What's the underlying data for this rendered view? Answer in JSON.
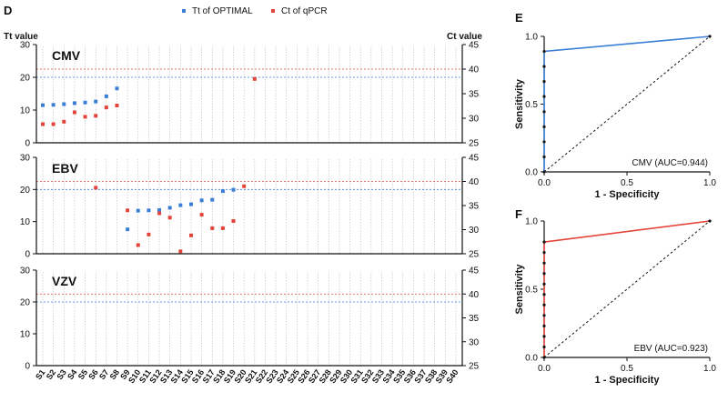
{
  "chart_data": [
    {
      "id": "D",
      "panel_label": "D",
      "type": "scatter",
      "legend": {
        "placement": "top-center",
        "entries": [
          {
            "name": "Tt of OPTIMAL",
            "color": "#3a7fd5",
            "axis": "left"
          },
          {
            "name": "Ct of qPCR",
            "color": "#e3443a",
            "axis": "right"
          }
        ]
      },
      "left_axis_title": "Tt value",
      "right_axis_title": "Ct value",
      "samples": [
        "S1",
        "S2",
        "S3",
        "S4",
        "S5",
        "S6",
        "S7",
        "S8",
        "S9",
        "S10",
        "S11",
        "S12",
        "S13",
        "S14",
        "S15",
        "S16",
        "S17",
        "S18",
        "S19",
        "S20",
        "S21",
        "S22",
        "S23",
        "S24",
        "S25",
        "S26",
        "S27",
        "S28",
        "S29",
        "S30",
        "S31",
        "S32",
        "S33",
        "S34",
        "S35",
        "S36",
        "S37",
        "S38",
        "S39",
        "S40"
      ],
      "tt_ylim": [
        0,
        30
      ],
      "tt_ticks": [
        "0",
        "10",
        "20",
        "30"
      ],
      "ct_ylim": [
        25,
        45
      ],
      "ct_ticks": [
        "25",
        "30",
        "35",
        "40",
        "45"
      ],
      "tt_threshold": 20,
      "ct_threshold": 40,
      "panels": [
        {
          "virus": "CMV",
          "series": [
            {
              "name": "Tt of OPTIMAL",
              "points": [
                [
                  1,
                  11.5
                ],
                [
                  2,
                  11.6
                ],
                [
                  3,
                  11.8
                ],
                [
                  4,
                  12.1
                ],
                [
                  5,
                  12.3
                ],
                [
                  6,
                  12.6
                ],
                [
                  7,
                  14.2
                ],
                [
                  8,
                  16.6
                ]
              ]
            },
            {
              "name": "Ct of qPCR",
              "points": [
                [
                  1,
                  28.8
                ],
                [
                  2,
                  28.8
                ],
                [
                  3,
                  29.3
                ],
                [
                  4,
                  31.2
                ],
                [
                  5,
                  30.3
                ],
                [
                  6,
                  30.5
                ],
                [
                  7,
                  32.2
                ],
                [
                  8,
                  32.6
                ],
                [
                  21,
                  38.0
                ]
              ]
            }
          ]
        },
        {
          "virus": "EBV",
          "series": [
            {
              "name": "Tt of OPTIMAL",
              "points": [
                [
                  9,
                  7.6
                ],
                [
                  10,
                  13.4
                ],
                [
                  11,
                  13.5
                ],
                [
                  12,
                  13.6
                ],
                [
                  13,
                  14.3
                ],
                [
                  14,
                  15.1
                ],
                [
                  15,
                  15.4
                ],
                [
                  16,
                  16.6
                ],
                [
                  17,
                  16.8
                ],
                [
                  18,
                  19.5
                ],
                [
                  19,
                  19.9
                ]
              ]
            },
            {
              "name": "Ct of qPCR",
              "points": [
                [
                  6,
                  38.7
                ],
                [
                  9,
                  34.0
                ],
                [
                  10,
                  26.8
                ],
                [
                  11,
                  29.0
                ],
                [
                  12,
                  33.4
                ],
                [
                  13,
                  32.5
                ],
                [
                  14,
                  25.5
                ],
                [
                  15,
                  28.8
                ],
                [
                  16,
                  33.1
                ],
                [
                  17,
                  30.3
                ],
                [
                  18,
                  30.3
                ],
                [
                  19,
                  31.8
                ],
                [
                  20,
                  39.0
                ]
              ]
            }
          ]
        },
        {
          "virus": "VZV",
          "series": [
            {
              "name": "Tt of OPTIMAL",
              "points": []
            },
            {
              "name": "Ct of qPCR",
              "points": []
            }
          ]
        }
      ]
    },
    {
      "id": "E",
      "panel_label": "E",
      "type": "line",
      "title": "CMV (AUC=0.944)",
      "xlabel": "1 - Specificity",
      "ylabel": "Sensitivity",
      "xlim": [
        0,
        1
      ],
      "ylim": [
        0,
        1
      ],
      "x_ticks": [
        "0.0",
        "0.5",
        "1.0"
      ],
      "y_ticks": [
        "0.0",
        "0.5",
        "1.0"
      ],
      "color": "#3a7fd5",
      "roc_points": [
        [
          0,
          0
        ],
        [
          0,
          0.111
        ],
        [
          0,
          0.222
        ],
        [
          0,
          0.333
        ],
        [
          0,
          0.444
        ],
        [
          0,
          0.556
        ],
        [
          0,
          0.667
        ],
        [
          0,
          0.778
        ],
        [
          0,
          0.889
        ],
        [
          1,
          1
        ]
      ],
      "reference_line": [
        [
          0,
          0
        ],
        [
          1,
          1
        ]
      ]
    },
    {
      "id": "F",
      "panel_label": "F",
      "type": "line",
      "title": "EBV (AUC=0.923)",
      "xlabel": "1 - Specificity",
      "ylabel": "Sensitivity",
      "xlim": [
        0,
        1
      ],
      "ylim": [
        0,
        1
      ],
      "x_ticks": [
        "0.0",
        "0.5",
        "1.0"
      ],
      "y_ticks": [
        "0.0",
        "0.5",
        "1.0"
      ],
      "color": "#e3443a",
      "roc_points": [
        [
          0,
          0
        ],
        [
          0,
          0.077
        ],
        [
          0,
          0.154
        ],
        [
          0,
          0.231
        ],
        [
          0,
          0.308
        ],
        [
          0,
          0.385
        ],
        [
          0,
          0.462
        ],
        [
          0,
          0.538
        ],
        [
          0,
          0.615
        ],
        [
          0,
          0.692
        ],
        [
          0,
          0.769
        ],
        [
          0,
          0.846
        ],
        [
          1,
          1
        ]
      ],
      "reference_line": [
        [
          0,
          0
        ],
        [
          1,
          1
        ]
      ]
    }
  ]
}
